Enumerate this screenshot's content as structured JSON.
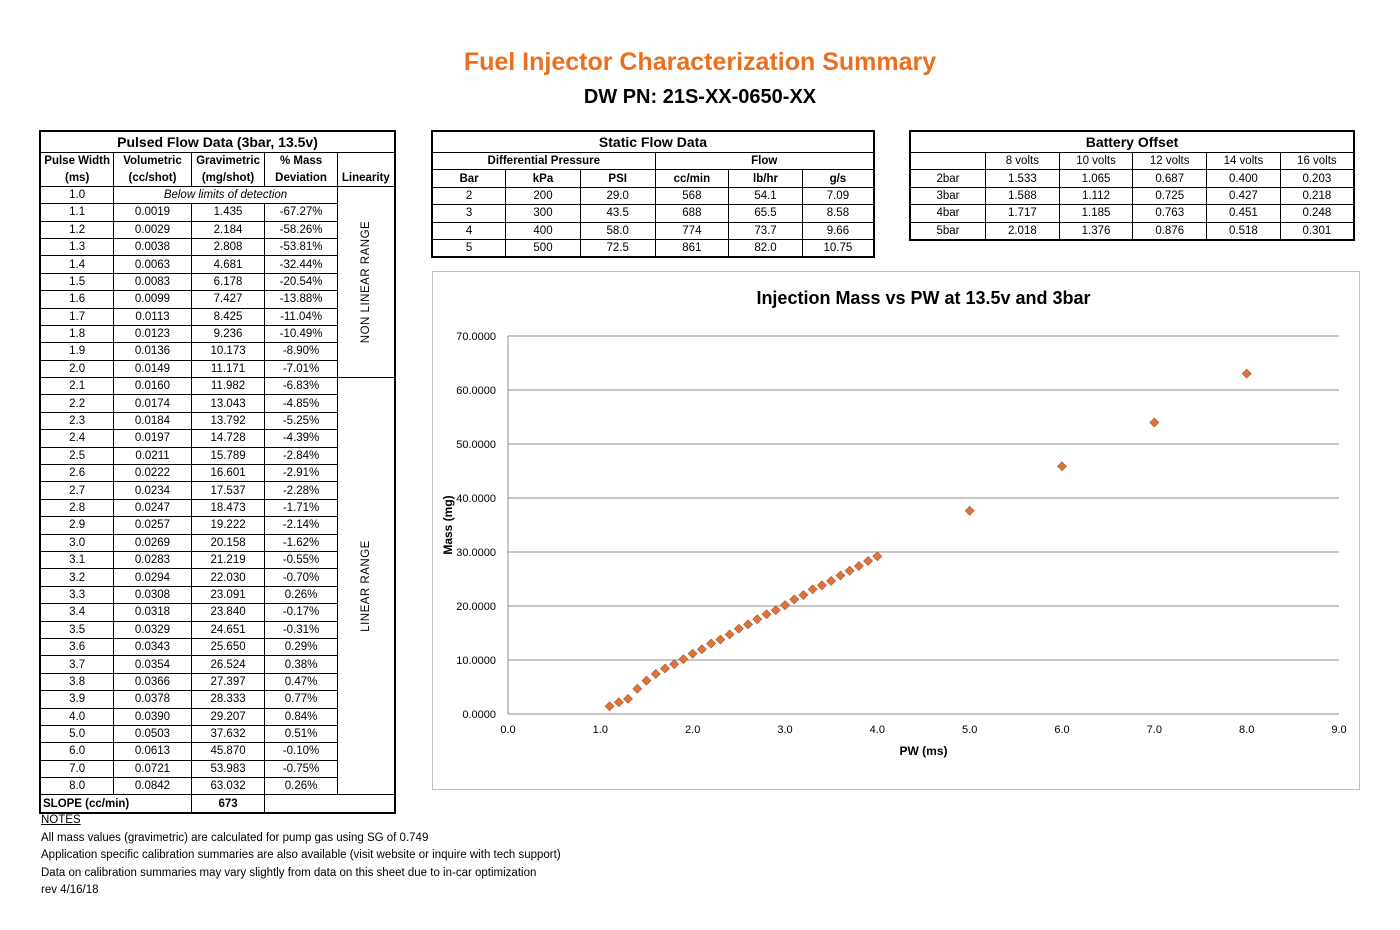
{
  "header": {
    "title": "Fuel Injector Characterization Summary",
    "subtitle": "DW PN: 21S-XX-0650-XX"
  },
  "pulsed": {
    "title": "Pulsed Flow Data (3bar, 13.5v)",
    "headers_top": [
      "Pulse Width",
      "Volumetric",
      "Gravimetric",
      "% Mass",
      ""
    ],
    "headers_bottom": [
      "(ms)",
      "(cc/shot)",
      "(mg/shot)",
      "Deviation",
      "Linearity"
    ],
    "first_row_pw": "1.0",
    "first_row_note": "Below limits of detection",
    "non_linear_label": "NON LINEAR RANGE",
    "linear_label": "LINEAR RANGE",
    "rows": [
      [
        "1.1",
        "0.0019",
        "1.435",
        "-67.27%"
      ],
      [
        "1.2",
        "0.0029",
        "2.184",
        "-58.26%"
      ],
      [
        "1.3",
        "0.0038",
        "2.808",
        "-53.81%"
      ],
      [
        "1.4",
        "0.0063",
        "4.681",
        "-32.44%"
      ],
      [
        "1.5",
        "0.0083",
        "6.178",
        "-20.54%"
      ],
      [
        "1.6",
        "0.0099",
        "7.427",
        "-13.88%"
      ],
      [
        "1.7",
        "0.0113",
        "8.425",
        "-11.04%"
      ],
      [
        "1.8",
        "0.0123",
        "9.236",
        "-10.49%"
      ],
      [
        "1.9",
        "0.0136",
        "10.173",
        "-8.90%"
      ],
      [
        "2.0",
        "0.0149",
        "11.171",
        "-7.01%"
      ],
      [
        "2.1",
        "0.0160",
        "11.982",
        "-6.83%"
      ],
      [
        "2.2",
        "0.0174",
        "13.043",
        "-4.85%"
      ],
      [
        "2.3",
        "0.0184",
        "13.792",
        "-5.25%"
      ],
      [
        "2.4",
        "0.0197",
        "14.728",
        "-4.39%"
      ],
      [
        "2.5",
        "0.0211",
        "15.789",
        "-2.84%"
      ],
      [
        "2.6",
        "0.0222",
        "16.601",
        "-2.91%"
      ],
      [
        "2.7",
        "0.0234",
        "17.537",
        "-2.28%"
      ],
      [
        "2.8",
        "0.0247",
        "18.473",
        "-1.71%"
      ],
      [
        "2.9",
        "0.0257",
        "19.222",
        "-2.14%"
      ],
      [
        "3.0",
        "0.0269",
        "20.158",
        "-1.62%"
      ],
      [
        "3.1",
        "0.0283",
        "21.219",
        "-0.55%"
      ],
      [
        "3.2",
        "0.0294",
        "22.030",
        "-0.70%"
      ],
      [
        "3.3",
        "0.0308",
        "23.091",
        "0.26%"
      ],
      [
        "3.4",
        "0.0318",
        "23.840",
        "-0.17%"
      ],
      [
        "3.5",
        "0.0329",
        "24.651",
        "-0.31%"
      ],
      [
        "3.6",
        "0.0343",
        "25.650",
        "0.29%"
      ],
      [
        "3.7",
        "0.0354",
        "26.524",
        "0.38%"
      ],
      [
        "3.8",
        "0.0366",
        "27.397",
        "0.47%"
      ],
      [
        "3.9",
        "0.0378",
        "28.333",
        "0.77%"
      ],
      [
        "4.0",
        "0.0390",
        "29.207",
        "0.84%"
      ],
      [
        "5.0",
        "0.0503",
        "37.632",
        "0.51%"
      ],
      [
        "6.0",
        "0.0613",
        "45.870",
        "-0.10%"
      ],
      [
        "7.0",
        "0.0721",
        "53.983",
        "-0.75%"
      ],
      [
        "8.0",
        "0.0842",
        "63.032",
        "0.26%"
      ]
    ],
    "slope_label": "SLOPE (cc/min)",
    "slope_value": "673"
  },
  "static_flow": {
    "title": "Static Flow Data",
    "group_headers": [
      "Differential Pressure",
      "Flow"
    ],
    "headers": [
      "Bar",
      "kPa",
      "PSI",
      "cc/min",
      "lb/hr",
      "g/s"
    ],
    "rows": [
      [
        "2",
        "200",
        "29.0",
        "568",
        "54.1",
        "7.09"
      ],
      [
        "3",
        "300",
        "43.5",
        "688",
        "65.5",
        "8.58"
      ],
      [
        "4",
        "400",
        "58.0",
        "774",
        "73.7",
        "9.66"
      ],
      [
        "5",
        "500",
        "72.5",
        "861",
        "82.0",
        "10.75"
      ]
    ]
  },
  "battery": {
    "title": "Battery Offset",
    "headers": [
      "",
      "8 volts",
      "10 volts",
      "12 volts",
      "14 volts",
      "16 volts"
    ],
    "rows": [
      [
        "2bar",
        "1.533",
        "1.065",
        "0.687",
        "0.400",
        "0.203"
      ],
      [
        "3bar",
        "1.588",
        "1.112",
        "0.725",
        "0.427",
        "0.218"
      ],
      [
        "4bar",
        "1.717",
        "1.185",
        "0.763",
        "0.451",
        "0.248"
      ],
      [
        "5bar",
        "2.018",
        "1.376",
        "0.876",
        "0.518",
        "0.301"
      ]
    ]
  },
  "chart_data": {
    "type": "scatter",
    "title": "Injection Mass vs PW at 13.5v and 3bar",
    "xlabel": "PW (ms)",
    "ylabel": "Mass (mg)",
    "xlim": [
      0,
      9
    ],
    "ylim": [
      0,
      70
    ],
    "xticks": [
      "0.0",
      "1.0",
      "2.0",
      "3.0",
      "4.0",
      "5.0",
      "6.0",
      "7.0",
      "8.0",
      "9.0"
    ],
    "yticks": [
      "0.0000",
      "10.0000",
      "20.0000",
      "30.0000",
      "40.0000",
      "50.0000",
      "60.0000",
      "70.0000"
    ],
    "grid": "horizontal",
    "marker_color": "#e0733a",
    "series": [
      {
        "x": [
          1.1,
          1.2,
          1.3,
          1.4,
          1.5,
          1.6,
          1.7,
          1.8,
          1.9,
          2.0,
          2.1,
          2.2,
          2.3,
          2.4,
          2.5,
          2.6,
          2.7,
          2.8,
          2.9,
          3.0,
          3.1,
          3.2,
          3.3,
          3.4,
          3.5,
          3.6,
          3.7,
          3.8,
          3.9,
          4.0,
          5.0,
          6.0,
          7.0,
          8.0
        ],
        "y": [
          1.435,
          2.184,
          2.808,
          4.681,
          6.178,
          7.427,
          8.425,
          9.236,
          10.173,
          11.171,
          11.982,
          13.043,
          13.792,
          14.728,
          15.789,
          16.601,
          17.537,
          18.473,
          19.222,
          20.158,
          21.219,
          22.03,
          23.091,
          23.84,
          24.651,
          25.65,
          26.524,
          27.397,
          28.333,
          29.207,
          37.632,
          45.87,
          53.983,
          63.032
        ]
      }
    ]
  },
  "notes": {
    "heading": "NOTES",
    "lines": [
      "All mass values (gravimetric) are calculated for pump gas using SG of 0.749",
      "Application specific calibration summaries are also available (visit website or inquire with tech support)",
      "Data on calibration summaries may vary slightly from data on this sheet due to in-car optimization",
      "rev 4/16/18"
    ]
  }
}
